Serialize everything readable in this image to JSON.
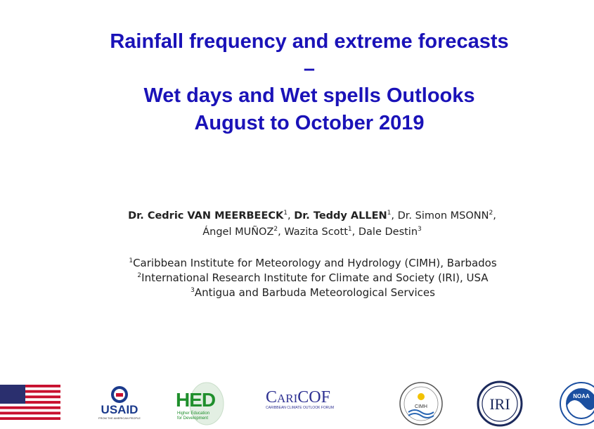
{
  "title": {
    "line1": "Rainfall frequency and extreme forecasts",
    "line2": "–",
    "line3": "Wet days and Wet spells Outlooks",
    "line4": "August to October 2019"
  },
  "authors": {
    "a1_name": "Dr. Cedric VAN MEERBEECK",
    "a1_sup": "1",
    "a1_sep": ", ",
    "a2_name": "Dr. Teddy ALLEN",
    "a2_sup": "1",
    "a2_sep": ", ",
    "a3_name": "Dr. Simon MSONN",
    "a3_sup": "2",
    "a3_sep": ",",
    "a4_name": "Ángel MUÑOZ",
    "a4_sup": "2",
    "a4_sep": ", ",
    "a5_name": "Wazita Scott",
    "a5_sup": "1",
    "a5_sep": ", ",
    "a6_name": "Dale Destin",
    "a6_sup": "3"
  },
  "affiliations": [
    {
      "sup": "1",
      "text": "Caribbean Institute for Meteorology and Hydrology (CIMH), Barbados"
    },
    {
      "sup": "2",
      "text": "International Research Institute for Climate and Society (IRI), USA"
    },
    {
      "sup": "3",
      "text": "Antigua and Barbuda Meteorological Services"
    }
  ],
  "logos": {
    "flag_icon": "us-flag-icon",
    "usaid_text": "USAID",
    "usaid_tagline": "FROM THE AMERICAN PEOPLE",
    "hed_text": "HED",
    "hed_tagline": "Higher Education for Development",
    "caricof_text": "CariCOF",
    "caricof_tagline": "CARIBBEAN CLIMATE OUTLOOK FORUM",
    "cimh_text": "CIMH",
    "iri_text": "IRI",
    "noaa_text": "NOAA",
    "colors": {
      "title": "#1a12b8",
      "flag_red": "#c8102e",
      "flag_blue": "#2a2f6e",
      "usaid_red": "#c8102e",
      "usaid_blue": "#1b3a8c",
      "hed_green": "#1f8f2c",
      "caricof_blue": "#2e3192",
      "noaa_blue": "#1b4fa0"
    }
  }
}
